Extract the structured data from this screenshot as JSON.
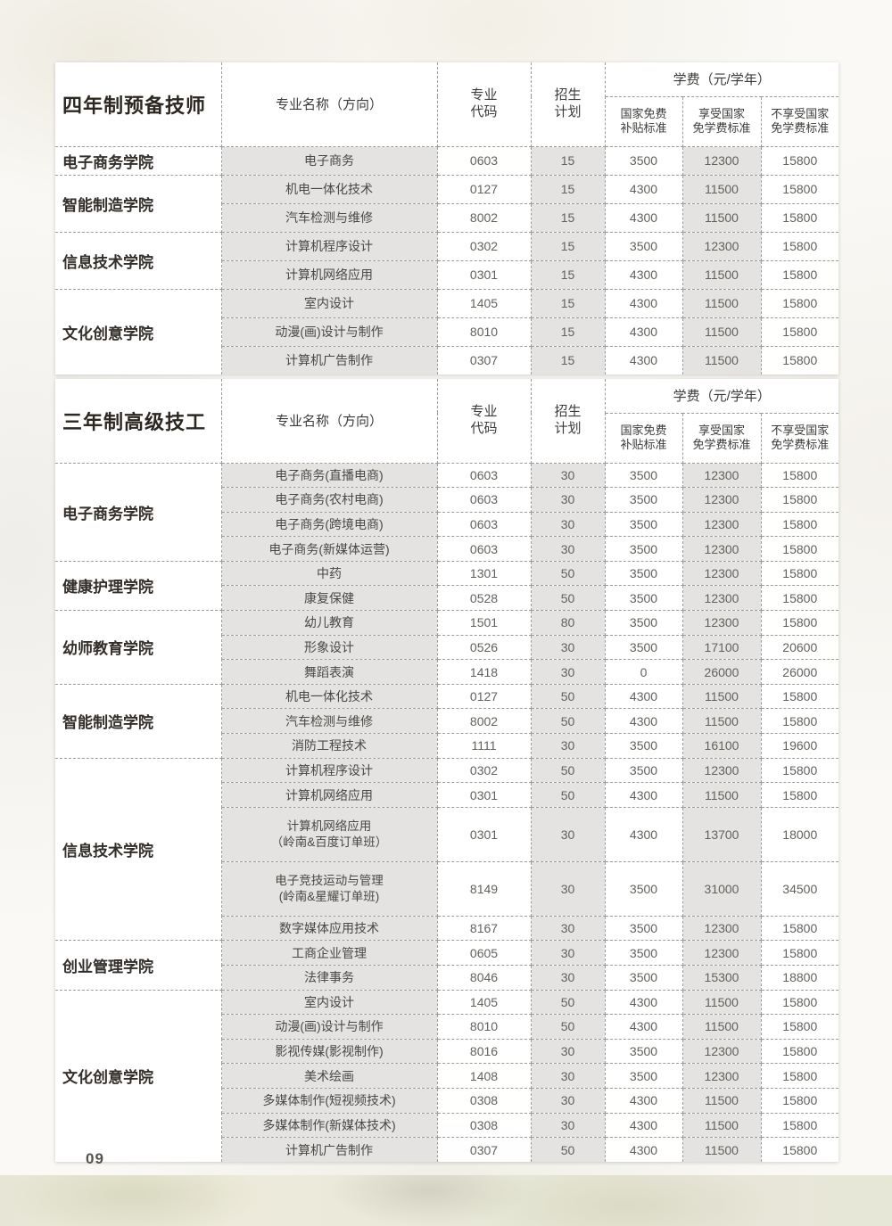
{
  "page": {
    "number": "09"
  },
  "colors": {
    "cell_shade": "#e4e3e1",
    "dash_border": "#9b9b99",
    "title_text": "#2c2721"
  },
  "tables": [
    {
      "title": "四年制预备技师",
      "columns": {
        "major": "专业名称（方向）",
        "code_lines": [
          "专业",
          "代码"
        ],
        "plan_lines": [
          "招生",
          "计划"
        ],
        "fee_group": "学费（元/学年）",
        "fee1_lines": [
          "国家免费",
          "补贴标准"
        ],
        "fee2_lines": [
          "享受国家",
          "免学费标准"
        ],
        "fee3_lines": [
          "不享受国家",
          "免学费标准"
        ]
      },
      "groups": [
        {
          "college": "电子商务学院",
          "rows": [
            {
              "major": "电子商务",
              "code": "0603",
              "plan": "15",
              "fee1": "3500",
              "fee2": "12300",
              "fee3": "15800"
            }
          ]
        },
        {
          "college": "智能制造学院",
          "rows": [
            {
              "major": "机电一体化技术",
              "code": "0127",
              "plan": "15",
              "fee1": "4300",
              "fee2": "11500",
              "fee3": "15800"
            },
            {
              "major": "汽车检测与维修",
              "code": "8002",
              "plan": "15",
              "fee1": "4300",
              "fee2": "11500",
              "fee3": "15800"
            }
          ]
        },
        {
          "college": "信息技术学院",
          "rows": [
            {
              "major": "计算机程序设计",
              "code": "0302",
              "plan": "15",
              "fee1": "3500",
              "fee2": "12300",
              "fee3": "15800"
            },
            {
              "major": "计算机网络应用",
              "code": "0301",
              "plan": "15",
              "fee1": "4300",
              "fee2": "11500",
              "fee3": "15800"
            }
          ]
        },
        {
          "college": "文化创意学院",
          "rows": [
            {
              "major": "室内设计",
              "code": "1405",
              "plan": "15",
              "fee1": "4300",
              "fee2": "11500",
              "fee3": "15800"
            },
            {
              "major": "动漫(画)设计与制作",
              "code": "8010",
              "plan": "15",
              "fee1": "4300",
              "fee2": "11500",
              "fee3": "15800"
            },
            {
              "major": "计算机广告制作",
              "code": "0307",
              "plan": "15",
              "fee1": "4300",
              "fee2": "11500",
              "fee3": "15800"
            }
          ]
        }
      ]
    },
    {
      "title": "三年制高级技工",
      "columns": {
        "major": "专业名称（方向）",
        "code_lines": [
          "专业",
          "代码"
        ],
        "plan_lines": [
          "招生",
          "计划"
        ],
        "fee_group": "学费（元/学年）",
        "fee1_lines": [
          "国家免费",
          "补贴标准"
        ],
        "fee2_lines": [
          "享受国家",
          "免学费标准"
        ],
        "fee3_lines": [
          "不享受国家",
          "免学费标准"
        ]
      },
      "groups": [
        {
          "college": "电子商务学院",
          "rows": [
            {
              "major": "电子商务(直播电商)",
              "code": "0603",
              "plan": "30",
              "fee1": "3500",
              "fee2": "12300",
              "fee3": "15800"
            },
            {
              "major": "电子商务(农村电商)",
              "code": "0603",
              "plan": "30",
              "fee1": "3500",
              "fee2": "12300",
              "fee3": "15800"
            },
            {
              "major": "电子商务(跨境电商)",
              "code": "0603",
              "plan": "30",
              "fee1": "3500",
              "fee2": "12300",
              "fee3": "15800"
            },
            {
              "major": "电子商务(新媒体运营)",
              "code": "0603",
              "plan": "30",
              "fee1": "3500",
              "fee2": "12300",
              "fee3": "15800"
            }
          ]
        },
        {
          "college": "健康护理学院",
          "rows": [
            {
              "major": "中药",
              "code": "1301",
              "plan": "50",
              "fee1": "3500",
              "fee2": "12300",
              "fee3": "15800"
            },
            {
              "major": "康复保健",
              "code": "0528",
              "plan": "50",
              "fee1": "3500",
              "fee2": "12300",
              "fee3": "15800"
            }
          ]
        },
        {
          "college": "幼师教育学院",
          "rows": [
            {
              "major": "幼儿教育",
              "code": "1501",
              "plan": "80",
              "fee1": "3500",
              "fee2": "12300",
              "fee3": "15800"
            },
            {
              "major": "形象设计",
              "code": "0526",
              "plan": "30",
              "fee1": "3500",
              "fee2": "17100",
              "fee3": "20600"
            },
            {
              "major": "舞蹈表演",
              "code": "1418",
              "plan": "30",
              "fee1": "0",
              "fee2": "26000",
              "fee3": "26000"
            }
          ]
        },
        {
          "college": "智能制造学院",
          "rows": [
            {
              "major": "机电一体化技术",
              "code": "0127",
              "plan": "50",
              "fee1": "4300",
              "fee2": "11500",
              "fee3": "15800"
            },
            {
              "major": "汽车检测与维修",
              "code": "8002",
              "plan": "50",
              "fee1": "4300",
              "fee2": "11500",
              "fee3": "15800"
            },
            {
              "major": "消防工程技术",
              "code": "1111",
              "plan": "30",
              "fee1": "3500",
              "fee2": "16100",
              "fee3": "19600"
            }
          ]
        },
        {
          "college": "信息技术学院",
          "rows": [
            {
              "major": "计算机程序设计",
              "code": "0302",
              "plan": "50",
              "fee1": "3500",
              "fee2": "12300",
              "fee3": "15800"
            },
            {
              "major": "计算机网络应用",
              "code": "0301",
              "plan": "50",
              "fee1": "4300",
              "fee2": "11500",
              "fee3": "15800"
            },
            {
              "major_lines": [
                "计算机网络应用",
                "（岭南&百度订单班）"
              ],
              "code": "0301",
              "plan": "30",
              "fee1": "4300",
              "fee2": "13700",
              "fee3": "18000",
              "tall": true
            },
            {
              "major_lines": [
                "电子竞技运动与管理",
                "(岭南&星耀订单班)"
              ],
              "code": "8149",
              "plan": "30",
              "fee1": "3500",
              "fee2": "31000",
              "fee3": "34500",
              "tall": true
            },
            {
              "major": "数字媒体应用技术",
              "code": "8167",
              "plan": "30",
              "fee1": "3500",
              "fee2": "12300",
              "fee3": "15800"
            }
          ]
        },
        {
          "college": "创业管理学院",
          "rows": [
            {
              "major": "工商企业管理",
              "code": "0605",
              "plan": "30",
              "fee1": "3500",
              "fee2": "12300",
              "fee3": "15800"
            },
            {
              "major": "法律事务",
              "code": "8046",
              "plan": "30",
              "fee1": "3500",
              "fee2": "15300",
              "fee3": "18800"
            }
          ]
        },
        {
          "college": "文化创意学院",
          "rows": [
            {
              "major": "室内设计",
              "code": "1405",
              "plan": "50",
              "fee1": "4300",
              "fee2": "11500",
              "fee3": "15800"
            },
            {
              "major": "动漫(画)设计与制作",
              "code": "8010",
              "plan": "50",
              "fee1": "4300",
              "fee2": "11500",
              "fee3": "15800"
            },
            {
              "major": "影视传媒(影视制作)",
              "code": "8016",
              "plan": "30",
              "fee1": "3500",
              "fee2": "12300",
              "fee3": "15800"
            },
            {
              "major": "美术绘画",
              "code": "1408",
              "plan": "30",
              "fee1": "3500",
              "fee2": "12300",
              "fee3": "15800"
            },
            {
              "major": "多媒体制作(短视频技术)",
              "code": "0308",
              "plan": "30",
              "fee1": "4300",
              "fee2": "11500",
              "fee3": "15800"
            },
            {
              "major": "多媒体制作(新媒体技术)",
              "code": "0308",
              "plan": "30",
              "fee1": "4300",
              "fee2": "11500",
              "fee3": "15800"
            },
            {
              "major": "计算机广告制作",
              "code": "0307",
              "plan": "50",
              "fee1": "4300",
              "fee2": "11500",
              "fee3": "15800"
            }
          ]
        }
      ]
    }
  ]
}
